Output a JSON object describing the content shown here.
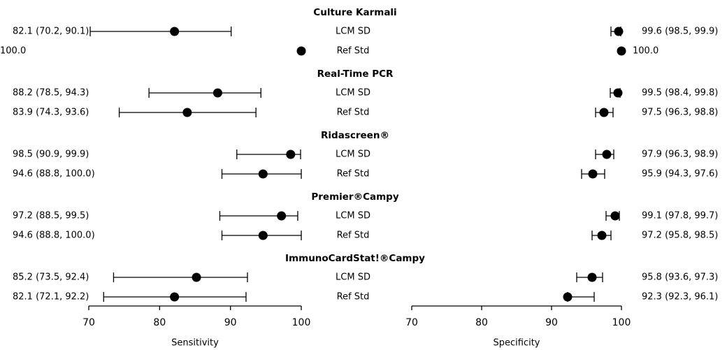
{
  "chart_data": {
    "type": "forest",
    "axes": [
      {
        "xlabel": "Sensitivity",
        "xlim": [
          70,
          100
        ],
        "xticks": [
          70,
          80,
          90,
          100
        ]
      },
      {
        "xlabel": "Specificity",
        "xlim": [
          70,
          100
        ],
        "xticks": [
          70,
          80,
          90,
          100
        ]
      }
    ],
    "groups": [
      {
        "title": "Culture Karmali",
        "rows": [
          {
            "label": "LCM SD",
            "estimates": [
              {
                "value": 82.1,
                "low": 70.2,
                "high": 90.1,
                "value_label": "82.1 (70.2, 90.1)"
              },
              {
                "value": 99.6,
                "low": 98.5,
                "high": 99.9,
                "value_label": "99.6 (98.5, 99.9)"
              }
            ]
          },
          {
            "label": "Ref Std",
            "estimates": [
              {
                "value": 100,
                "value_label": "100.0"
              },
              {
                "value": 100,
                "value_label": "100.0"
              }
            ]
          }
        ]
      },
      {
        "title": "Real-Time PCR",
        "rows": [
          {
            "label": "LCM SD",
            "estimates": [
              {
                "value": 88.2,
                "low": 78.5,
                "high": 94.3,
                "value_label": "88.2 (78.5, 94.3)"
              },
              {
                "value": 99.5,
                "low": 98.4,
                "high": 99.8,
                "value_label": "99.5 (98.4, 99.8)"
              }
            ]
          },
          {
            "label": "Ref Std",
            "estimates": [
              {
                "value": 83.9,
                "low": 74.3,
                "high": 93.6,
                "value_label": "83.9 (74.3, 93.6)"
              },
              {
                "value": 97.5,
                "low": 96.3,
                "high": 98.8,
                "value_label": "97.5 (96.3, 98.8)"
              }
            ]
          }
        ]
      },
      {
        "title": "Ridascreen®",
        "rows": [
          {
            "label": "LCM SD",
            "estimates": [
              {
                "value": 98.5,
                "low": 90.9,
                "high": 99.9,
                "value_label": "98.5 (90.9, 99.9)"
              },
              {
                "value": 97.9,
                "low": 96.3,
                "high": 98.9,
                "value_label": "97.9 (96.3, 98.9)"
              }
            ]
          },
          {
            "label": "Ref Std",
            "estimates": [
              {
                "value": 94.6,
                "low": 88.8,
                "high": 100,
                "value_label": "94.6 (88.8, 100.0)"
              },
              {
                "value": 95.9,
                "low": 94.3,
                "high": 97.6,
                "value_label": "95.9 (94.3, 97.6)"
              }
            ]
          }
        ]
      },
      {
        "title": "Premier®Campy",
        "rows": [
          {
            "label": "LCM SD",
            "estimates": [
              {
                "value": 97.2,
                "low": 88.5,
                "high": 99.5,
                "value_label": "97.2 (88.5, 99.5)"
              },
              {
                "value": 99.1,
                "low": 97.8,
                "high": 99.7,
                "value_label": "99.1 (97.8, 99.7)"
              }
            ]
          },
          {
            "label": "Ref Std",
            "estimates": [
              {
                "value": 94.6,
                "low": 88.8,
                "high": 100,
                "value_label": "94.6 (88.8, 100.0)"
              },
              {
                "value": 97.2,
                "low": 95.8,
                "high": 98.5,
                "value_label": "97.2 (95.8, 98.5)"
              }
            ]
          }
        ]
      },
      {
        "title": "ImmunoCardStat!®Campy",
        "rows": [
          {
            "label": "LCM SD",
            "estimates": [
              {
                "value": 85.2,
                "low": 73.5,
                "high": 92.4,
                "value_label": "85.2 (73.5, 92.4)"
              },
              {
                "value": 95.8,
                "low": 93.6,
                "high": 97.3,
                "value_label": "95.8 (93.6, 97.3)"
              }
            ]
          },
          {
            "label": "Ref Std",
            "estimates": [
              {
                "value": 82.1,
                "low": 72.1,
                "high": 92.2,
                "value_label": "82.1 (72.1, 92.2)"
              },
              {
                "value": 92.3,
                "low": 92.3,
                "high": 96.1,
                "value_label": "92.3 (92.3, 96.1)"
              }
            ]
          }
        ]
      }
    ]
  }
}
